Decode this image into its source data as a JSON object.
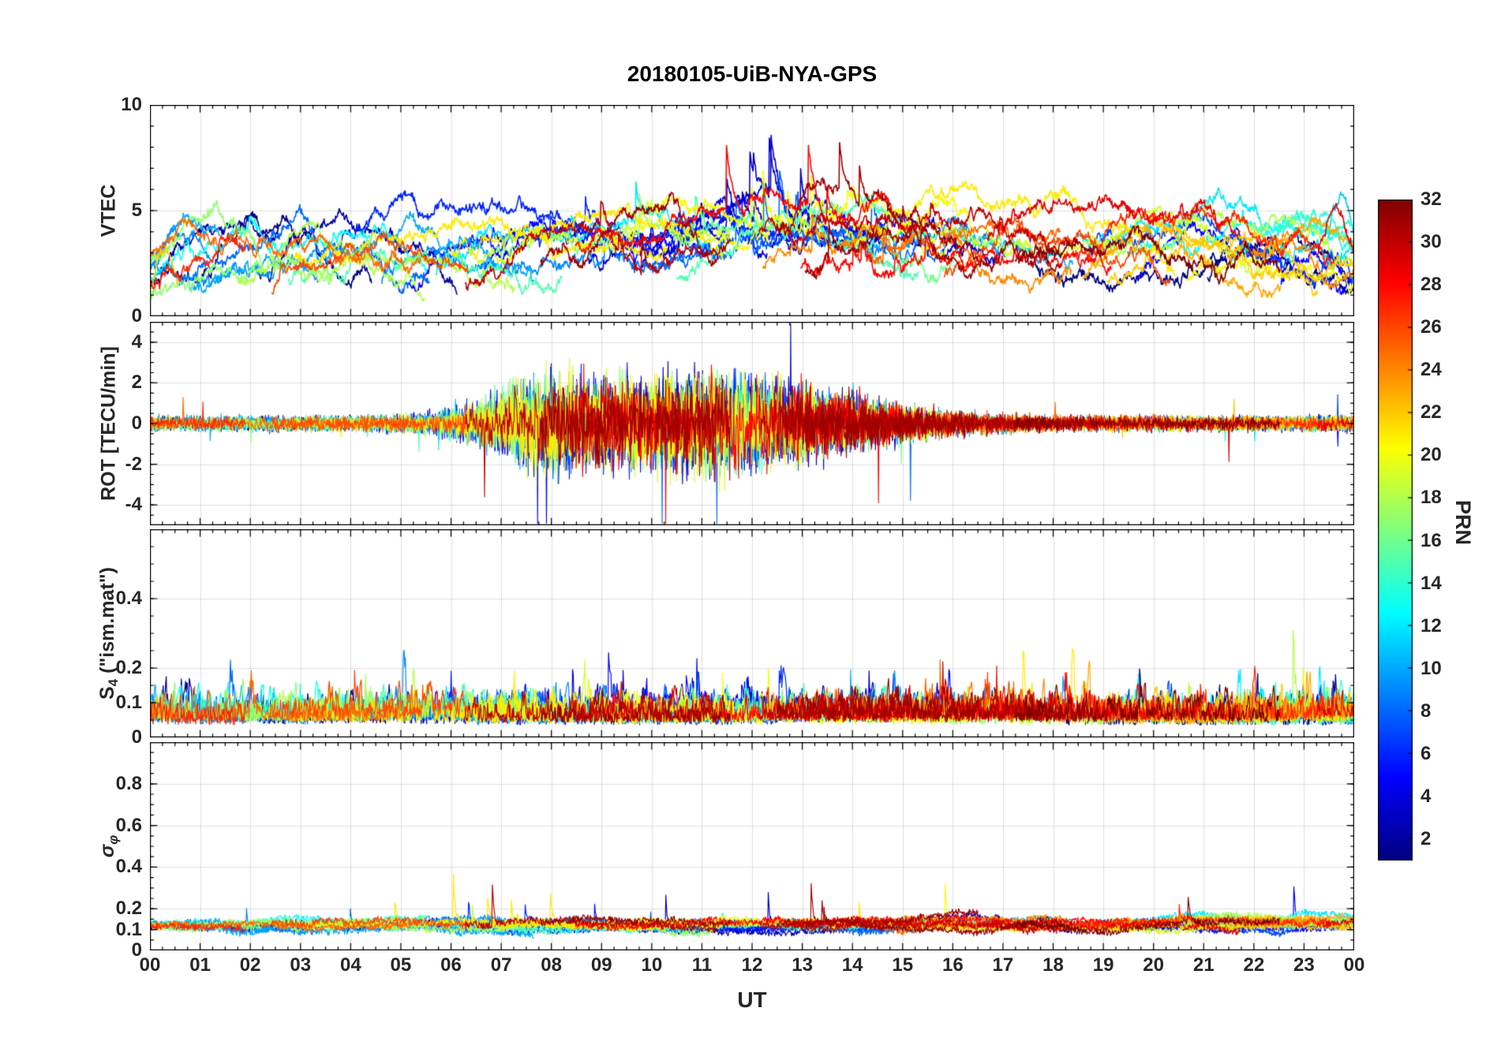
{
  "chart_data": {
    "type": "line",
    "title": "20180105-UiB-NYA-GPS",
    "xlabel": "UT",
    "x_range": [
      0,
      24
    ],
    "x_tick_values": [
      0,
      1,
      2,
      3,
      4,
      5,
      6,
      7,
      8,
      9,
      10,
      11,
      12,
      13,
      14,
      15,
      16,
      17,
      18,
      19,
      20,
      21,
      22,
      23,
      24
    ],
    "x_tick_labels": [
      "00",
      "01",
      "02",
      "03",
      "04",
      "05",
      "06",
      "07",
      "08",
      "09",
      "10",
      "11",
      "12",
      "13",
      "14",
      "15",
      "16",
      "17",
      "18",
      "19",
      "20",
      "21",
      "22",
      "23",
      "00"
    ],
    "x_minor_step": 0.25,
    "grid": true,
    "legend_position": "colorbar-right",
    "colorbar": {
      "label": "PRN",
      "min": 1,
      "max": 32,
      "tick_values": [
        2,
        4,
        6,
        8,
        10,
        12,
        14,
        16,
        18,
        20,
        22,
        24,
        26,
        28,
        30,
        32
      ],
      "colormap": "jet"
    },
    "satellites": {
      "prn_min": 1,
      "prn_max": 32,
      "seed": 20180105,
      "passes_min": 2,
      "passes_max": 3,
      "pass_hours_min": 3.5,
      "pass_hours_max": 7.5
    },
    "sample_step_h": 0.012,
    "panels": [
      {
        "name": "VTEC",
        "ylabel_segments": [
          {
            "text": "VTEC"
          }
        ],
        "ylim": [
          0,
          10
        ],
        "ytick_values": [
          0,
          5,
          10
        ],
        "ytick_labels": [
          "0",
          "5",
          "10"
        ],
        "minor_step": 1,
        "line_width": 1.6,
        "model": {
          "kind": "vtec",
          "base_min": 1.3,
          "base_max": 3.3,
          "arc_amp": 1.4,
          "noise": 0.22,
          "burst_center": 12,
          "burst_width": 3.5,
          "burst_amp": 2.4,
          "clip_min": 0.15,
          "clip_max": 9.0
        }
      },
      {
        "name": "ROT",
        "ylabel_segments": [
          {
            "text": "ROT [TECU/min]"
          }
        ],
        "ylim": [
          -5,
          5
        ],
        "ytick_values": [
          -4,
          -2,
          0,
          2,
          4
        ],
        "ytick_labels": [
          "-4",
          "-2",
          "0",
          "2",
          "4"
        ],
        "minor_step": 0.5,
        "line_width": 1.1,
        "model": {
          "kind": "rot",
          "base_amp": 0.17,
          "burst_center": 11.2,
          "burst_width": 3.4,
          "burst_amp": 0.85,
          "burst2_center": 7.8,
          "burst2_width": 1.3,
          "spike_prob": 0.0018,
          "clip": 4.9
        }
      },
      {
        "name": "S4",
        "ylabel_segments": [
          {
            "text": "S"
          },
          {
            "text": "4",
            "sub": true
          },
          {
            "text": " (\"ism.mat\")"
          }
        ],
        "ylim": [
          0,
          0.6
        ],
        "ytick_values": [
          0,
          0.1,
          0.2,
          0.4
        ],
        "ytick_labels": [
          "0",
          "0.1",
          "0.2",
          "0.4"
        ],
        "minor_step": 0.05,
        "line_width": 1.2,
        "model": {
          "kind": "s4",
          "base_min": 0.035,
          "base_max": 0.06,
          "noise_amp": 0.16,
          "burst_prob": 0.004,
          "burst_amp_min": 0.05,
          "burst_amp_max": 0.2,
          "clip_min": 0.02,
          "clip_max": 0.42
        }
      },
      {
        "name": "sigma_phi",
        "ylabel_segments": [
          {
            "text": "σ",
            "italic": true
          },
          {
            "text": "φ",
            "sub": true,
            "italic": true
          }
        ],
        "ylim": [
          0,
          1.0
        ],
        "ytick_values": [
          0,
          0.1,
          0.2,
          0.4,
          0.6,
          0.8
        ],
        "ytick_labels": [
          "0",
          "0.1",
          "0.2",
          "0.4",
          "0.6",
          "0.8"
        ],
        "minor_step": 0.05,
        "line_width": 1.2,
        "model": {
          "kind": "sigma",
          "base": 0.125,
          "noise": 0.016,
          "spike_prob": 0.0008,
          "spike_amp_min": 0.05,
          "spike_amp_max": 0.3,
          "hot_center": 7.0,
          "hot_width": 0.8,
          "hot_gain": 10,
          "clip_min": 0.06,
          "clip_max": 0.5
        }
      }
    ]
  }
}
